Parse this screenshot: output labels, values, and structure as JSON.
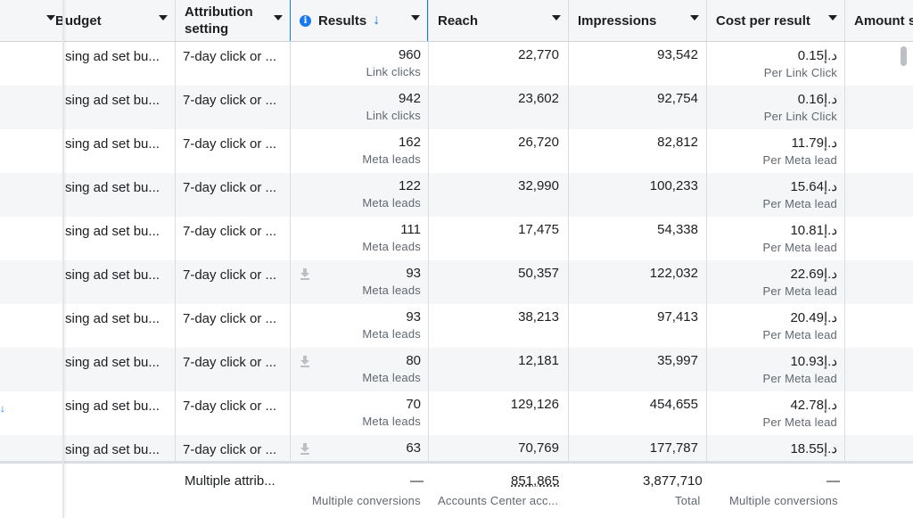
{
  "header": {
    "budget": "Budget",
    "attribution": "Attribution setting",
    "results": "Results",
    "reach": "Reach",
    "impressions": "Impressions",
    "cost": "Cost per result",
    "amount": "Amount s"
  },
  "rows": [
    {
      "budget": "sing ad set bu...",
      "attrib": "7-day click or ...",
      "results": "960",
      "results_sub": "Link clicks",
      "reach": "22,770",
      "impressions": "93,542",
      "cost": "د.إ0.15",
      "cost_sub": "Per Link Click",
      "download": false
    },
    {
      "budget": "sing ad set bu...",
      "attrib": "7-day click or ...",
      "results": "942",
      "results_sub": "Link clicks",
      "reach": "23,602",
      "impressions": "92,754",
      "cost": "د.إ0.16",
      "cost_sub": "Per Link Click",
      "download": false
    },
    {
      "budget": "sing ad set bu...",
      "attrib": "7-day click or ...",
      "results": "162",
      "results_sub": "Meta leads",
      "reach": "26,720",
      "impressions": "82,812",
      "cost": "د.إ11.79",
      "cost_sub": "Per Meta lead",
      "download": false
    },
    {
      "budget": "sing ad set bu...",
      "attrib": "7-day click or ...",
      "results": "122",
      "results_sub": "Meta leads",
      "reach": "32,990",
      "impressions": "100,233",
      "cost": "د.إ15.64",
      "cost_sub": "Per Meta lead",
      "download": false
    },
    {
      "budget": "sing ad set bu...",
      "attrib": "7-day click or ...",
      "results": "111",
      "results_sub": "Meta leads",
      "reach": "17,475",
      "impressions": "54,338",
      "cost": "د.إ10.81",
      "cost_sub": "Per Meta lead",
      "download": false
    },
    {
      "budget": "sing ad set bu...",
      "attrib": "7-day click or ...",
      "results": "93",
      "results_sub": "Meta leads",
      "reach": "50,357",
      "impressions": "122,032",
      "cost": "د.إ22.69",
      "cost_sub": "Per Meta lead",
      "download": true
    },
    {
      "budget": "sing ad set bu...",
      "attrib": "7-day click or ...",
      "results": "93",
      "results_sub": "Meta leads",
      "reach": "38,213",
      "impressions": "97,413",
      "cost": "د.إ20.49",
      "cost_sub": "Per Meta lead",
      "download": false
    },
    {
      "budget": "sing ad set bu...",
      "attrib": "7-day click or ...",
      "results": "80",
      "results_sub": "Meta leads",
      "reach": "12,181",
      "impressions": "35,997",
      "cost": "د.إ10.93",
      "cost_sub": "Per Meta lead",
      "download": true
    },
    {
      "budget": "sing ad set bu...",
      "attrib": "7-day click or ...",
      "results": "70",
      "results_sub": "Meta leads",
      "reach": "129,126",
      "impressions": "454,655",
      "cost": "د.إ42.78",
      "cost_sub": "Per Meta lead",
      "download": false
    },
    {
      "budget": "sing ad set bu...",
      "attrib": "7-day click or ...",
      "results": "63",
      "results_sub": "",
      "reach": "70,769",
      "impressions": "177,787",
      "cost": "د.إ18.55",
      "cost_sub": "",
      "download": true
    }
  ],
  "footer": {
    "attrib": "Multiple attrib...",
    "results": "—",
    "results_sub": "Multiple conversions",
    "reach": "851,865",
    "reach_sub": "Accounts Center acc...",
    "impressions": "3,877,710",
    "impressions_sub": "Total",
    "cost": "—",
    "cost_sub": "Multiple conversions"
  },
  "icons": {
    "info": "info-icon",
    "sort": "sort-descending-icon",
    "dropdown": "caret-down-icon",
    "download": "download-icon"
  },
  "colors": {
    "accent": "#1877f2",
    "header_bg": "#f5f6f7",
    "alt_row": "#f5f6f7",
    "muted_text": "#606770"
  }
}
